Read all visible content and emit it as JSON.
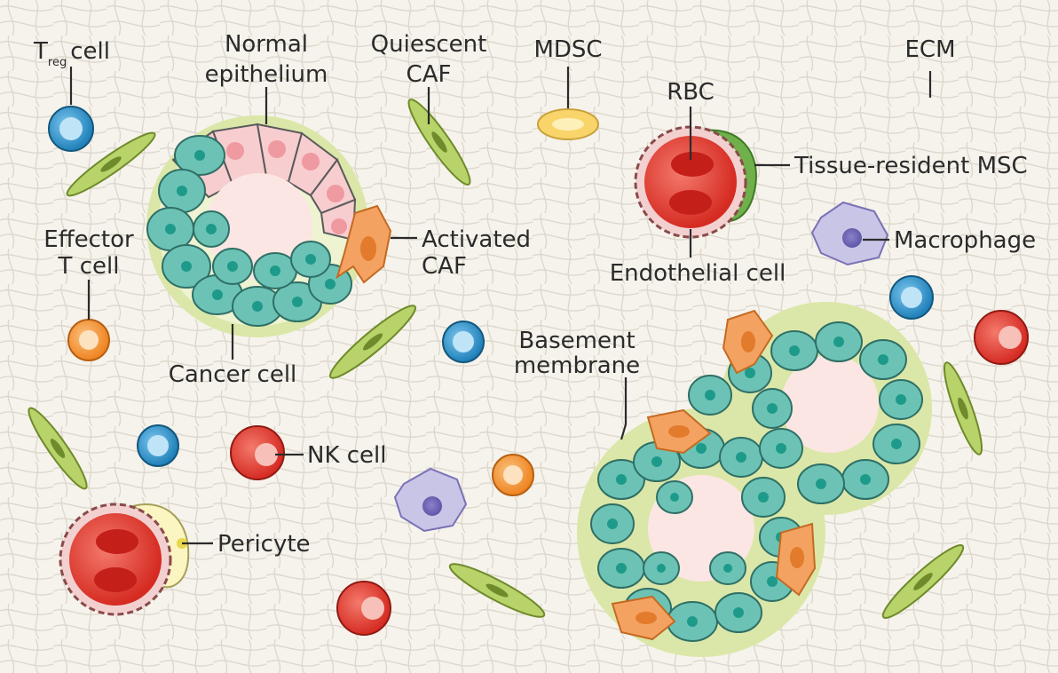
{
  "labels": {
    "treg_main": "T",
    "treg_sub": "reg",
    "treg_suffix": "cell",
    "normal_line1": "Normal",
    "normal_line2": "epithelium",
    "quiescent_line1": "Quiescent",
    "quiescent_line2": "CAF",
    "mdsc": "MDSC",
    "ecm": "ECM",
    "rbc": "RBC",
    "tissue_msc": "Tissue-resident MSC",
    "effector_line1": "Effector",
    "effector_line2": "T cell",
    "activated_line1": "Activated",
    "activated_line2": "CAF",
    "endothelial": "Endothelial cell",
    "macrophage": "Macrophage",
    "cancer": "Cancer cell",
    "basement_line1": "Basement",
    "basement_line2": "membrane",
    "nk": "NK cell",
    "pericyte": "Pericyte"
  },
  "colors": {
    "background": "#f6f3ec",
    "ecm_fiber": "#d9d4c8",
    "text": "#2b2b2b",
    "cancer_cell": "#6cc3b5",
    "cancer_nucleus": "#1e9a8a",
    "normal_cell": "#f7cdd0",
    "normal_nucleus": "#ee9aa0",
    "basement_membrane": "#dbe7a8",
    "caf": "#b7d36a",
    "activated_caf": "#f4a261",
    "t_cell_blue": "#2b8fc4",
    "effector_orange": "#f28c28",
    "rbc": "#e23a2c",
    "mdsc": "#f9d46b",
    "macrophage": "#c9c5e6",
    "msc": "#6fb04a"
  }
}
